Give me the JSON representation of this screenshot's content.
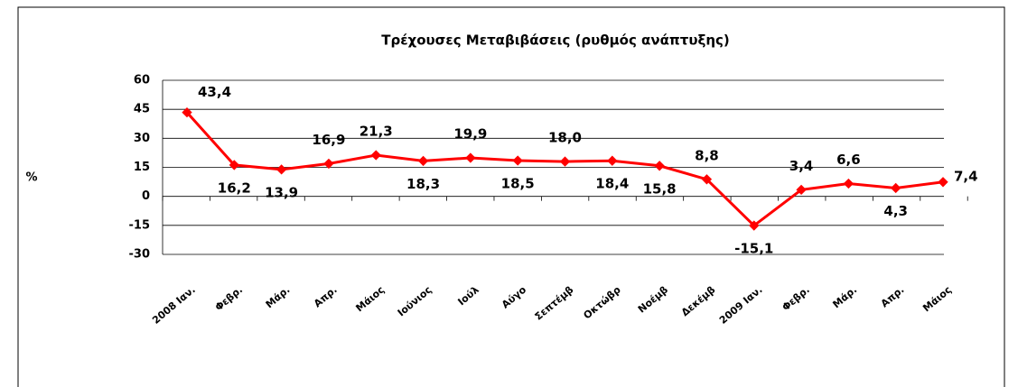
{
  "chart_data": {
    "type": "line",
    "title": "Τρέχουσες Μεταβιβάσεις (ρυθμός ανάπτυξης)",
    "ylabel": "%",
    "categories": [
      "2008 Ιαν.",
      "Φεβρ.",
      "Μάρ.",
      "Απρ.",
      "Μάιος",
      "Ιούνιος",
      "Ιούλ",
      "Αύγο",
      "Σεπτέμβ",
      "Οκτώβρ",
      "Νοέμβ",
      "Δεκέμβ",
      "2009 Ιαν.",
      "Φεβρ.",
      "Μάρ.",
      "Απρ.",
      "Μάιος"
    ],
    "series": [
      {
        "name": "Τρέχουσες Μεταβιβάσεις",
        "color": "#ff0000",
        "values": [
          43.4,
          16.2,
          13.9,
          16.9,
          21.3,
          18.3,
          19.9,
          18.5,
          18.0,
          18.4,
          15.8,
          8.8,
          -15.1,
          3.4,
          6.6,
          4.3,
          7.4
        ],
        "value_labels": [
          "43,4",
          "16,2",
          "13,9",
          "16,9",
          "21,3",
          "18,3",
          "19,9",
          "18,5",
          "18,0",
          "18,4",
          "15,8",
          "8,8",
          "-15,1",
          "3,4",
          "6,6",
          "4,3",
          "7,4"
        ]
      }
    ],
    "ylim": [
      -30,
      60
    ],
    "yticks": [
      -30,
      -15,
      0,
      15,
      30,
      45,
      60
    ],
    "grid": true
  }
}
